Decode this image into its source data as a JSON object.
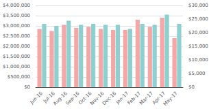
{
  "chart_data": {
    "type": "bar",
    "categories": [
      "Jun-16",
      "Jul-16",
      "Aug-16",
      "Sep-16",
      "Oct-16",
      "Nov-16",
      "Dec-16",
      "Jan-17",
      "Feb-17",
      "Mar-17",
      "Apr-17",
      "May-17"
    ],
    "series": [
      {
        "color": "#F4A7A7",
        "values": [
          2850000,
          2750000,
          3050000,
          2900000,
          2950000,
          2850000,
          2800000,
          2800000,
          3300000,
          2950000,
          3400000,
          2400000
        ]
      },
      {
        "color": "#8ECFCF",
        "values": [
          3100000,
          3000000,
          3250000,
          3050000,
          3100000,
          3050000,
          3050000,
          2850000,
          3100000,
          3050000,
          3550000,
          3100000
        ]
      }
    ],
    "ylim": [
      0,
      4000000
    ],
    "yticks": [
      {
        "value": 0,
        "label": "$0"
      },
      {
        "value": 500000,
        "label": "$500,000"
      },
      {
        "value": 1000000,
        "label": "$1,000,000"
      },
      {
        "value": 1500000,
        "label": "$1,500,000"
      },
      {
        "value": 2000000,
        "label": "$2,000,000"
      },
      {
        "value": 2500000,
        "label": "$2,500,000"
      },
      {
        "value": 3000000,
        "label": "$3,000,000"
      },
      {
        "value": 3500000,
        "label": "$3,500,000"
      },
      {
        "value": 4000000,
        "label": "$4,000,000"
      }
    ],
    "y2lim": [
      0,
      30000
    ],
    "y2ticks": [
      {
        "value": 0,
        "label": "$0"
      },
      {
        "value": 5000,
        "label": "$5,000"
      },
      {
        "value": 10000,
        "label": "$10,000"
      },
      {
        "value": 15000,
        "label": "$15,000"
      },
      {
        "value": 20000,
        "label": "$20,000"
      },
      {
        "value": 25000,
        "label": "$25,000"
      },
      {
        "value": 30000,
        "label": "$30,000"
      }
    ],
    "grid": true
  }
}
